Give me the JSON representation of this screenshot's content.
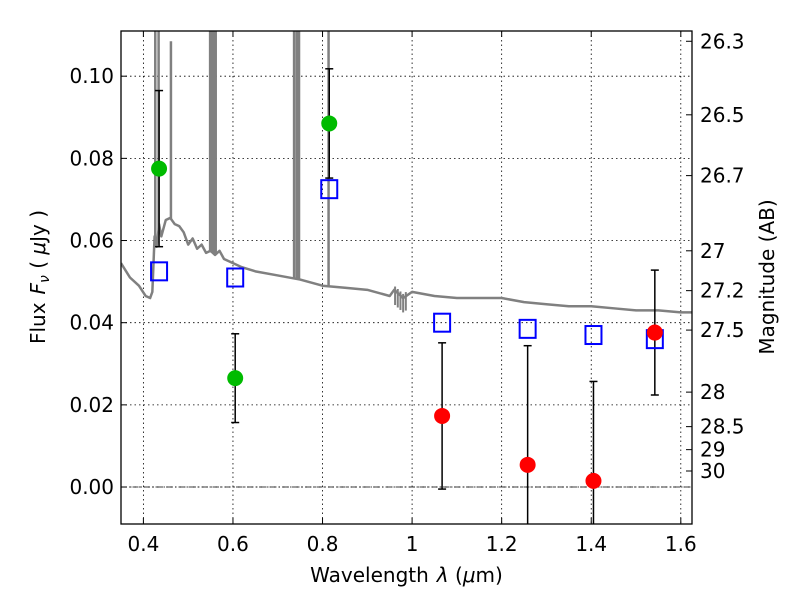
{
  "chart_data": {
    "type": "scatter",
    "xlabel": "Wavelength",
    "xlabel_symbol": "λ",
    "xlabel_unit_open": " (",
    "xlabel_unit_mu": "μ",
    "xlabel_unit_rest": "m)",
    "ylabel_prefix": "Flux",
    "ylabel_symbol": "F",
    "ylabel_subscript": "ν",
    "ylabel_unit_open": " ( ",
    "ylabel_unit_mu": "μ",
    "ylabel_unit_rest": "Jy )",
    "y2label": "Magnitude (AB)",
    "xlim": [
      0.35,
      1.625
    ],
    "ylim": [
      -0.009,
      0.111
    ],
    "grid": true,
    "zero_line": 0.0,
    "x_ticks": [
      {
        "value": 0.4,
        "label": "0.4"
      },
      {
        "value": 0.6,
        "label": "0.6"
      },
      {
        "value": 0.8,
        "label": "0.8"
      },
      {
        "value": 1.0,
        "label": "1"
      },
      {
        "value": 1.2,
        "label": "1.2"
      },
      {
        "value": 1.4,
        "label": "1.4"
      },
      {
        "value": 1.6,
        "label": "1.6"
      }
    ],
    "y_ticks": [
      {
        "value": 0.0,
        "label": "0.00"
      },
      {
        "value": 0.02,
        "label": "0.02"
      },
      {
        "value": 0.04,
        "label": "0.04"
      },
      {
        "value": 0.06,
        "label": "0.06"
      },
      {
        "value": 0.08,
        "label": "0.08"
      },
      {
        "value": 0.1,
        "label": "0.10"
      }
    ],
    "magnitude_ticks": [
      {
        "flux": 0.1085,
        "label": "26.3"
      },
      {
        "flux": 0.0906,
        "label": "26.5"
      },
      {
        "flux": 0.0758,
        "label": "26.7"
      },
      {
        "flux": 0.0575,
        "label": "27"
      },
      {
        "flux": 0.0478,
        "label": "27.2"
      },
      {
        "flux": 0.0382,
        "label": "27.5"
      },
      {
        "flux": 0.0231,
        "label": "28"
      },
      {
        "flux": 0.0147,
        "label": "28.5"
      },
      {
        "flux": 0.0091,
        "label": "29"
      },
      {
        "flux": 0.0039,
        "label": "30"
      }
    ],
    "model_spectrum": {
      "name": "model",
      "color": "#808080",
      "x": [
        0.35,
        0.37,
        0.39,
        0.405,
        0.415,
        0.42,
        0.425,
        0.43,
        0.435,
        0.44,
        0.45,
        0.46,
        0.47,
        0.48,
        0.49,
        0.5,
        0.51,
        0.52,
        0.53,
        0.54,
        0.55,
        0.56,
        0.57,
        0.58,
        0.6,
        0.62,
        0.65,
        0.7,
        0.75,
        0.8,
        0.85,
        0.9,
        0.95,
        0.96,
        0.98,
        1.0,
        1.05,
        1.1,
        1.15,
        1.2,
        1.25,
        1.3,
        1.35,
        1.4,
        1.45,
        1.5,
        1.55,
        1.6,
        1.625
      ],
      "y": [
        0.0545,
        0.051,
        0.049,
        0.0465,
        0.046,
        0.0475,
        0.061,
        0.0585,
        0.064,
        0.061,
        0.065,
        0.0655,
        0.064,
        0.0635,
        0.062,
        0.059,
        0.0605,
        0.058,
        0.059,
        0.057,
        0.0575,
        0.0565,
        0.0575,
        0.0555,
        0.0545,
        0.0535,
        0.0525,
        0.0515,
        0.0505,
        0.049,
        0.0485,
        0.048,
        0.0465,
        0.048,
        0.046,
        0.0475,
        0.0465,
        0.046,
        0.046,
        0.046,
        0.045,
        0.0445,
        0.044,
        0.044,
        0.0435,
        0.043,
        0.043,
        0.0425,
        0.0425
      ],
      "emission_lines": [
        {
          "x": 0.4265,
          "top": 0.111
        },
        {
          "x": 0.434,
          "top": 0.111
        },
        {
          "x": 0.4615,
          "top": 0.1085
        },
        {
          "x": 0.549,
          "top": 0.111
        },
        {
          "x": 0.552,
          "top": 0.111
        },
        {
          "x": 0.5565,
          "top": 0.111
        },
        {
          "x": 0.5615,
          "top": 0.111
        },
        {
          "x": 0.7365,
          "top": 0.111
        },
        {
          "x": 0.7425,
          "top": 0.111
        },
        {
          "x": 0.7475,
          "top": 0.111
        },
        {
          "x": 0.8135,
          "top": 0.111
        }
      ]
    },
    "model_photometry": {
      "name": "model bands",
      "color": "#0000ff",
      "x": [
        0.435,
        0.605,
        0.815,
        1.067,
        1.258,
        1.405,
        1.542
      ],
      "y": [
        0.0525,
        0.051,
        0.0725,
        0.04,
        0.0385,
        0.037,
        0.036
      ]
    },
    "detections": {
      "name": "detections",
      "color": "#00bb00",
      "x": [
        0.435,
        0.605,
        0.815
      ],
      "y": [
        0.0775,
        0.0265,
        0.0885
      ],
      "err": [
        0.019,
        0.0108,
        0.0133
      ]
    },
    "nondetections": {
      "name": "non-detections",
      "color": "#ff0000",
      "x": [
        1.067,
        1.258,
        1.405,
        1.542
      ],
      "y": [
        0.0173,
        0.0054,
        0.0015,
        0.0376
      ],
      "err": [
        0.0178,
        0.029,
        0.0242,
        0.0152
      ]
    }
  }
}
